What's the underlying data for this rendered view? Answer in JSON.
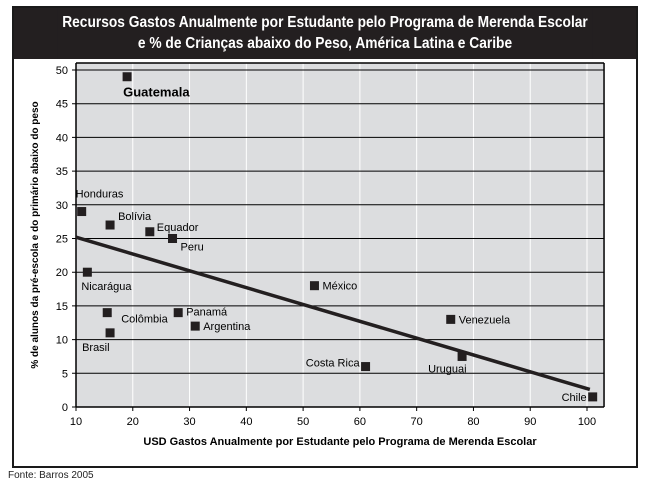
{
  "chart_data": {
    "type": "scatter",
    "title_line1": "Recursos Gastos Anualmente por Estudante pelo Programa de Merenda Escolar",
    "title_line2": "e % de Crianças abaixo do Peso, América Latina e Caribe",
    "xlabel": "USD Gastos Anualmente por Estudante pelo Programa de Merenda Escolar",
    "ylabel": "% de alunos da pré-escola e do primário abaixo do peso",
    "xlim": [
      10,
      103
    ],
    "ylim": [
      0,
      50
    ],
    "xticks": [
      10,
      20,
      30,
      40,
      50,
      60,
      70,
      80,
      90,
      100
    ],
    "yticks": [
      0,
      5,
      10,
      15,
      20,
      25,
      30,
      35,
      40,
      45,
      50
    ],
    "grid": true,
    "points": [
      {
        "label": "Guatemala",
        "x": 19,
        "y": 49,
        "bold": true
      },
      {
        "label": "Honduras",
        "x": 11,
        "y": 29
      },
      {
        "label": "Bolívia",
        "x": 16,
        "y": 27
      },
      {
        "label": "Equador",
        "x": 23,
        "y": 26
      },
      {
        "label": "Peru",
        "x": 27,
        "y": 25
      },
      {
        "label": "Nicarágua",
        "x": 12,
        "y": 20
      },
      {
        "label": "México",
        "x": 52,
        "y": 18
      },
      {
        "label": "Colômbia",
        "x": 15.5,
        "y": 14
      },
      {
        "label": "Panamá",
        "x": 28,
        "y": 14
      },
      {
        "label": "Argentina",
        "x": 31,
        "y": 12
      },
      {
        "label": "Brasil",
        "x": 16,
        "y": 11
      },
      {
        "label": "Venezuela",
        "x": 76,
        "y": 13
      },
      {
        "label": "Costa Rica",
        "x": 61,
        "y": 6
      },
      {
        "label": "Uruguai",
        "x": 78,
        "y": 7.5
      },
      {
        "label": "Chile",
        "x": 101,
        "y": 1.5
      }
    ],
    "trendline": {
      "x": [
        10,
        100.5
      ],
      "y": [
        25.2,
        2.6
      ]
    }
  },
  "source": "Fonte: Barros 2005"
}
